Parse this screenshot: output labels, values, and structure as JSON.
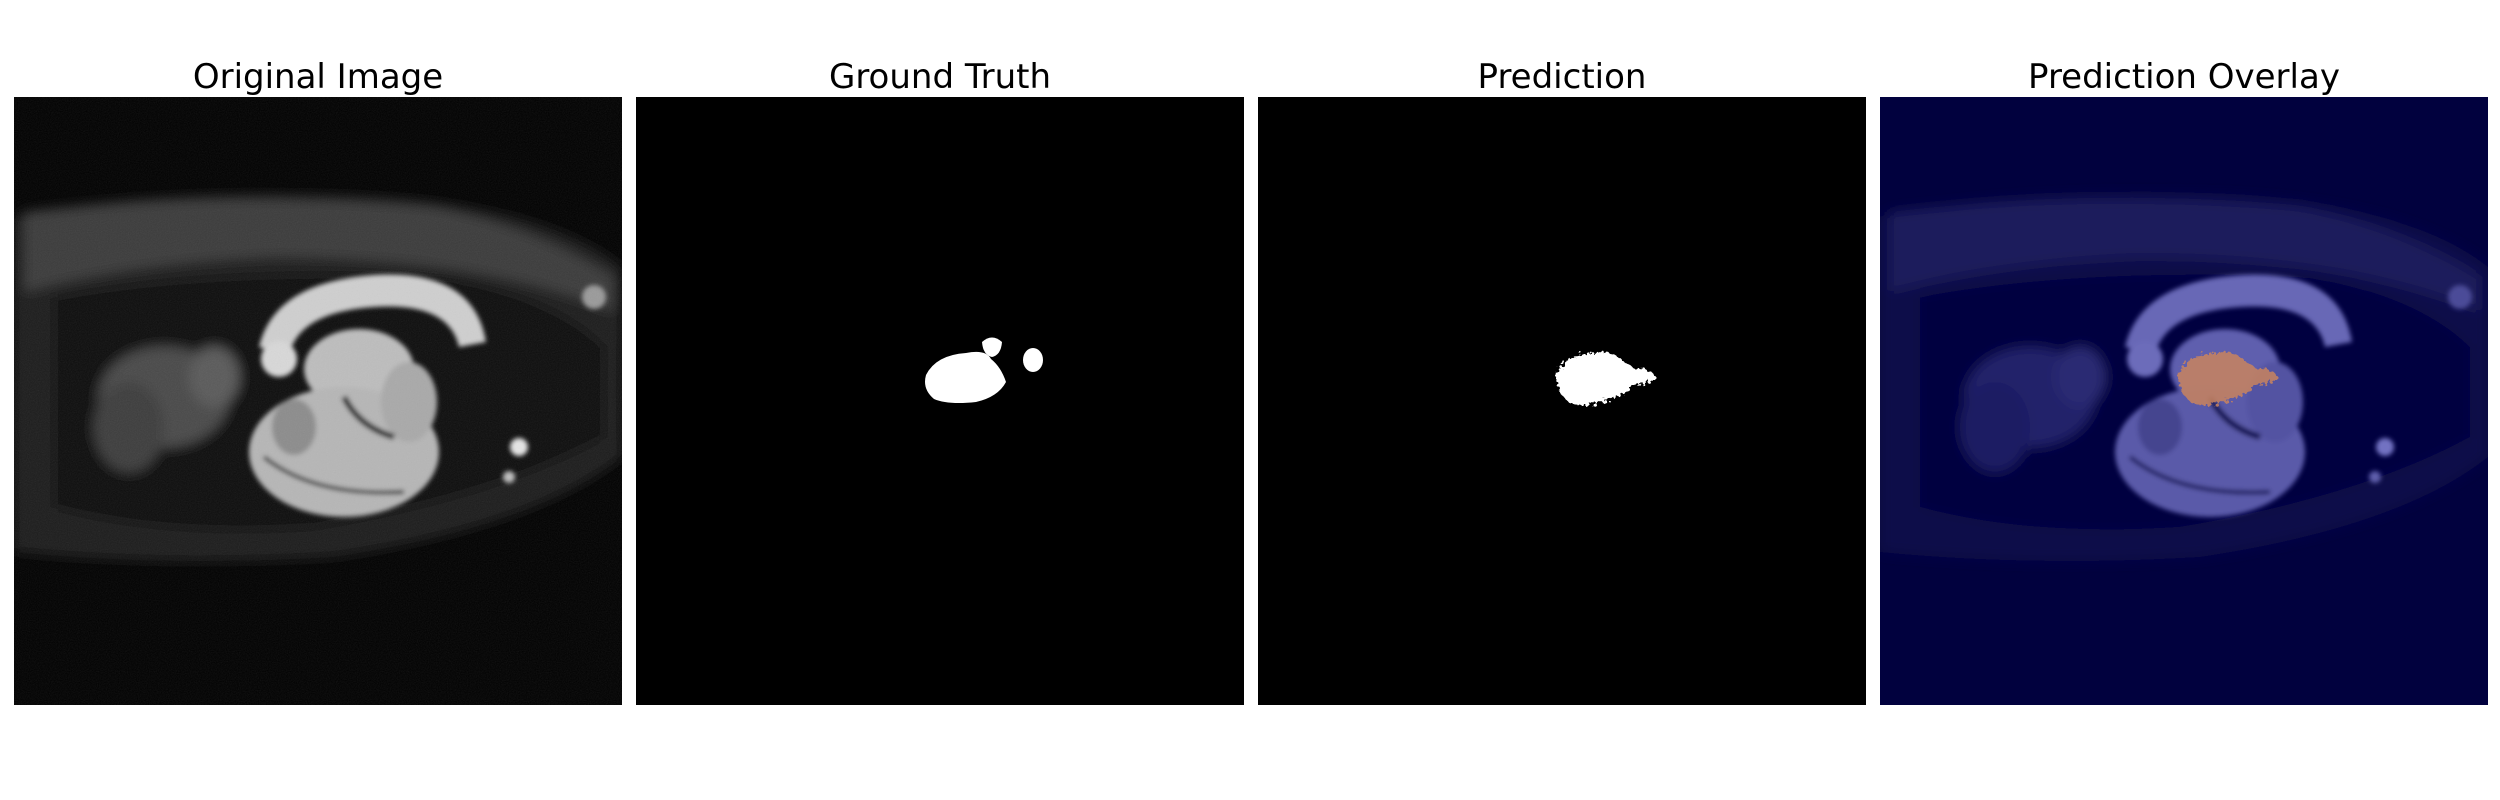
{
  "panels": [
    {
      "title": "Original Image"
    },
    {
      "title": "Ground Truth"
    },
    {
      "title": "Prediction"
    },
    {
      "title": "Prediction Overlay"
    }
  ],
  "colors": {
    "background": "#000000",
    "overlay_background": "#01013e",
    "overlay_highlight": "#c9845f",
    "mask": "#ffffff"
  }
}
